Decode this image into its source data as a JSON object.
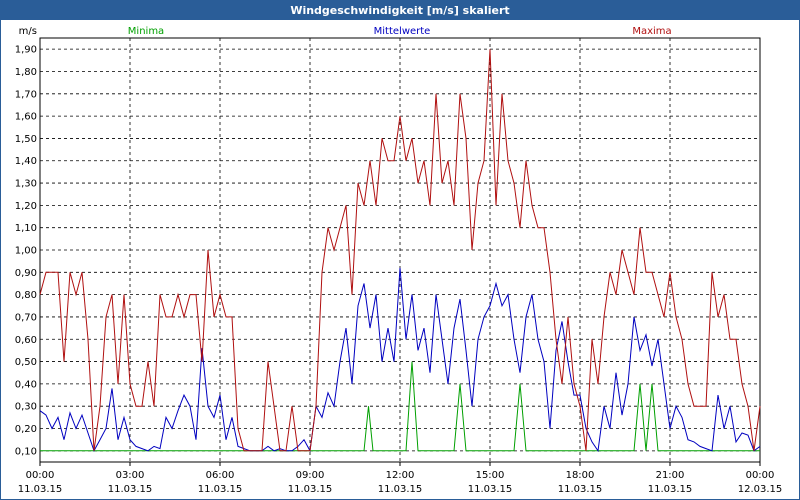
{
  "title": "Windgeschwindigkeit [m/s] skaliert",
  "chart_data": {
    "type": "line",
    "title": "Windgeschwindigkeit [m/s] skaliert",
    "ylabel": "m/s",
    "xlabel": "",
    "ylim": [
      0.0,
      1.95
    ],
    "xlim": [
      0,
      24
    ],
    "grid": true,
    "legend": "top",
    "y_ticks": [
      "0,10",
      "0,20",
      "0,30",
      "0,40",
      "0,50",
      "0,60",
      "0,70",
      "0,80",
      "0,90",
      "1,00",
      "1,10",
      "1,20",
      "1,30",
      "1,40",
      "1,50",
      "1,60",
      "1,70",
      "1,80",
      "1,90"
    ],
    "y_tick_values": [
      0.1,
      0.2,
      0.3,
      0.4,
      0.5,
      0.6,
      0.7,
      0.8,
      0.9,
      1.0,
      1.1,
      1.2,
      1.3,
      1.4,
      1.5,
      1.6,
      1.7,
      1.8,
      1.9
    ],
    "x_tick_hours": [
      0,
      3,
      6,
      9,
      12,
      15,
      18,
      21,
      24
    ],
    "x_ticks": [
      {
        "time": "00:00",
        "date": "11.03.15"
      },
      {
        "time": "03:00",
        "date": "11.03.15"
      },
      {
        "time": "06:00",
        "date": "11.03.15"
      },
      {
        "time": "09:00",
        "date": "11.03.15"
      },
      {
        "time": "12:00",
        "date": "11.03.15"
      },
      {
        "time": "15:00",
        "date": "11.03.15"
      },
      {
        "time": "18:00",
        "date": "11.03.15"
      },
      {
        "time": "21:00",
        "date": "11.03.15"
      },
      {
        "time": "00:00",
        "date": "12.03.15"
      }
    ],
    "series": [
      {
        "name": "Minima",
        "color": "#00a000",
        "x": [
          0,
          10.8,
          10.95,
          11.1,
          11.25,
          12.2,
          12.4,
          12.6,
          13.8,
          14.0,
          14.2,
          15.8,
          16.0,
          16.2,
          19.8,
          20.0,
          20.2,
          20.4,
          20.6,
          20.8,
          24
        ],
        "y": [
          0.1,
          0.1,
          0.3,
          0.1,
          0.1,
          0.1,
          0.5,
          0.1,
          0.1,
          0.4,
          0.1,
          0.1,
          0.4,
          0.1,
          0.1,
          0.4,
          0.1,
          0.4,
          0.1,
          0.1,
          0.1
        ]
      },
      {
        "name": "Mittelwerte",
        "color": "#0000c0",
        "x": [
          0.0,
          0.2,
          0.4,
          0.6,
          0.8,
          1.0,
          1.2,
          1.4,
          1.6,
          1.8,
          2.0,
          2.2,
          2.4,
          2.6,
          2.8,
          3.0,
          3.2,
          3.4,
          3.6,
          3.8,
          4.0,
          4.2,
          4.4,
          4.6,
          4.8,
          5.0,
          5.2,
          5.4,
          5.6,
          5.8,
          6.0,
          6.2,
          6.4,
          6.6,
          6.8,
          7.0,
          7.2,
          7.4,
          7.6,
          7.8,
          8.0,
          8.2,
          8.4,
          8.6,
          8.8,
          9.0,
          9.2,
          9.4,
          9.6,
          9.8,
          10.0,
          10.2,
          10.4,
          10.6,
          10.8,
          11.0,
          11.2,
          11.4,
          11.6,
          11.8,
          12.0,
          12.2,
          12.4,
          12.6,
          12.8,
          13.0,
          13.2,
          13.4,
          13.6,
          13.8,
          14.0,
          14.2,
          14.4,
          14.6,
          14.8,
          15.0,
          15.2,
          15.4,
          15.6,
          15.8,
          16.0,
          16.2,
          16.4,
          16.6,
          16.8,
          17.0,
          17.2,
          17.4,
          17.6,
          17.8,
          18.0,
          18.2,
          18.4,
          18.6,
          18.8,
          19.0,
          19.2,
          19.4,
          19.6,
          19.8,
          20.0,
          20.2,
          20.4,
          20.6,
          20.8,
          21.0,
          21.2,
          21.4,
          21.6,
          21.8,
          22.0,
          22.2,
          22.4,
          22.6,
          22.8,
          23.0,
          23.2,
          23.4,
          23.6,
          23.8,
          24.0
        ],
        "y": [
          0.28,
          0.26,
          0.2,
          0.25,
          0.15,
          0.27,
          0.2,
          0.26,
          0.18,
          0.1,
          0.15,
          0.2,
          0.38,
          0.15,
          0.25,
          0.15,
          0.12,
          0.11,
          0.1,
          0.12,
          0.11,
          0.25,
          0.2,
          0.28,
          0.35,
          0.3,
          0.15,
          0.56,
          0.3,
          0.25,
          0.35,
          0.15,
          0.25,
          0.12,
          0.11,
          0.1,
          0.1,
          0.1,
          0.12,
          0.1,
          0.11,
          0.1,
          0.1,
          0.12,
          0.15,
          0.1,
          0.3,
          0.25,
          0.36,
          0.3,
          0.5,
          0.65,
          0.4,
          0.75,
          0.85,
          0.65,
          0.8,
          0.5,
          0.65,
          0.5,
          0.92,
          0.6,
          0.8,
          0.55,
          0.65,
          0.45,
          0.8,
          0.6,
          0.4,
          0.65,
          0.78,
          0.55,
          0.3,
          0.6,
          0.7,
          0.75,
          0.85,
          0.75,
          0.8,
          0.6,
          0.45,
          0.7,
          0.8,
          0.6,
          0.5,
          0.2,
          0.55,
          0.68,
          0.5,
          0.35,
          0.35,
          0.2,
          0.14,
          0.1,
          0.3,
          0.2,
          0.45,
          0.26,
          0.4,
          0.7,
          0.55,
          0.62,
          0.48,
          0.6,
          0.4,
          0.2,
          0.3,
          0.25,
          0.15,
          0.14,
          0.12,
          0.11,
          0.1,
          0.35,
          0.2,
          0.3,
          0.14,
          0.18,
          0.17,
          0.1,
          0.12
        ]
      },
      {
        "name": "Maxima",
        "color": "#b01010",
        "x": [
          0.0,
          0.2,
          0.4,
          0.6,
          0.8,
          1.0,
          1.2,
          1.4,
          1.6,
          1.8,
          2.0,
          2.2,
          2.4,
          2.6,
          2.8,
          3.0,
          3.2,
          3.4,
          3.6,
          3.8,
          4.0,
          4.2,
          4.4,
          4.6,
          4.8,
          5.0,
          5.2,
          5.4,
          5.6,
          5.8,
          6.0,
          6.2,
          6.4,
          6.6,
          6.8,
          7.0,
          7.2,
          7.4,
          7.6,
          7.8,
          8.0,
          8.2,
          8.4,
          8.6,
          8.8,
          9.0,
          9.2,
          9.4,
          9.6,
          9.8,
          10.0,
          10.2,
          10.4,
          10.6,
          10.8,
          11.0,
          11.2,
          11.4,
          11.6,
          11.8,
          12.0,
          12.2,
          12.4,
          12.6,
          12.8,
          13.0,
          13.2,
          13.4,
          13.6,
          13.8,
          14.0,
          14.2,
          14.4,
          14.6,
          14.8,
          15.0,
          15.2,
          15.4,
          15.6,
          15.8,
          16.0,
          16.2,
          16.4,
          16.6,
          16.8,
          17.0,
          17.2,
          17.4,
          17.6,
          17.8,
          18.0,
          18.2,
          18.4,
          18.6,
          18.8,
          19.0,
          19.2,
          19.4,
          19.6,
          19.8,
          20.0,
          20.2,
          20.4,
          20.6,
          20.8,
          21.0,
          21.2,
          21.4,
          21.6,
          21.8,
          22.0,
          22.2,
          22.4,
          22.6,
          22.8,
          23.0,
          23.2,
          23.4,
          23.6,
          23.8,
          24.0
        ],
        "y": [
          0.8,
          0.9,
          0.9,
          0.9,
          0.5,
          0.9,
          0.8,
          0.9,
          0.6,
          0.1,
          0.3,
          0.7,
          0.8,
          0.4,
          0.8,
          0.4,
          0.3,
          0.3,
          0.5,
          0.3,
          0.8,
          0.7,
          0.7,
          0.8,
          0.7,
          0.8,
          0.8,
          0.5,
          1.0,
          0.7,
          0.8,
          0.7,
          0.7,
          0.2,
          0.1,
          0.1,
          0.1,
          0.1,
          0.5,
          0.3,
          0.1,
          0.1,
          0.3,
          0.1,
          0.1,
          0.1,
          0.3,
          0.9,
          1.1,
          1.0,
          1.1,
          1.2,
          0.8,
          1.3,
          1.2,
          1.4,
          1.2,
          1.5,
          1.4,
          1.4,
          1.6,
          1.4,
          1.5,
          1.3,
          1.4,
          1.2,
          1.7,
          1.3,
          1.4,
          1.2,
          1.7,
          1.5,
          1.0,
          1.3,
          1.4,
          1.9,
          1.2,
          1.7,
          1.4,
          1.3,
          1.1,
          1.4,
          1.2,
          1.1,
          1.1,
          0.9,
          0.6,
          0.4,
          0.7,
          0.4,
          0.3,
          0.1,
          0.6,
          0.4,
          0.7,
          0.9,
          0.8,
          1.0,
          0.9,
          0.8,
          1.1,
          0.9,
          0.9,
          0.8,
          0.7,
          0.9,
          0.7,
          0.6,
          0.4,
          0.3,
          0.3,
          0.3,
          0.9,
          0.7,
          0.8,
          0.6,
          0.6,
          0.4,
          0.3,
          0.1,
          0.3
        ]
      }
    ]
  }
}
